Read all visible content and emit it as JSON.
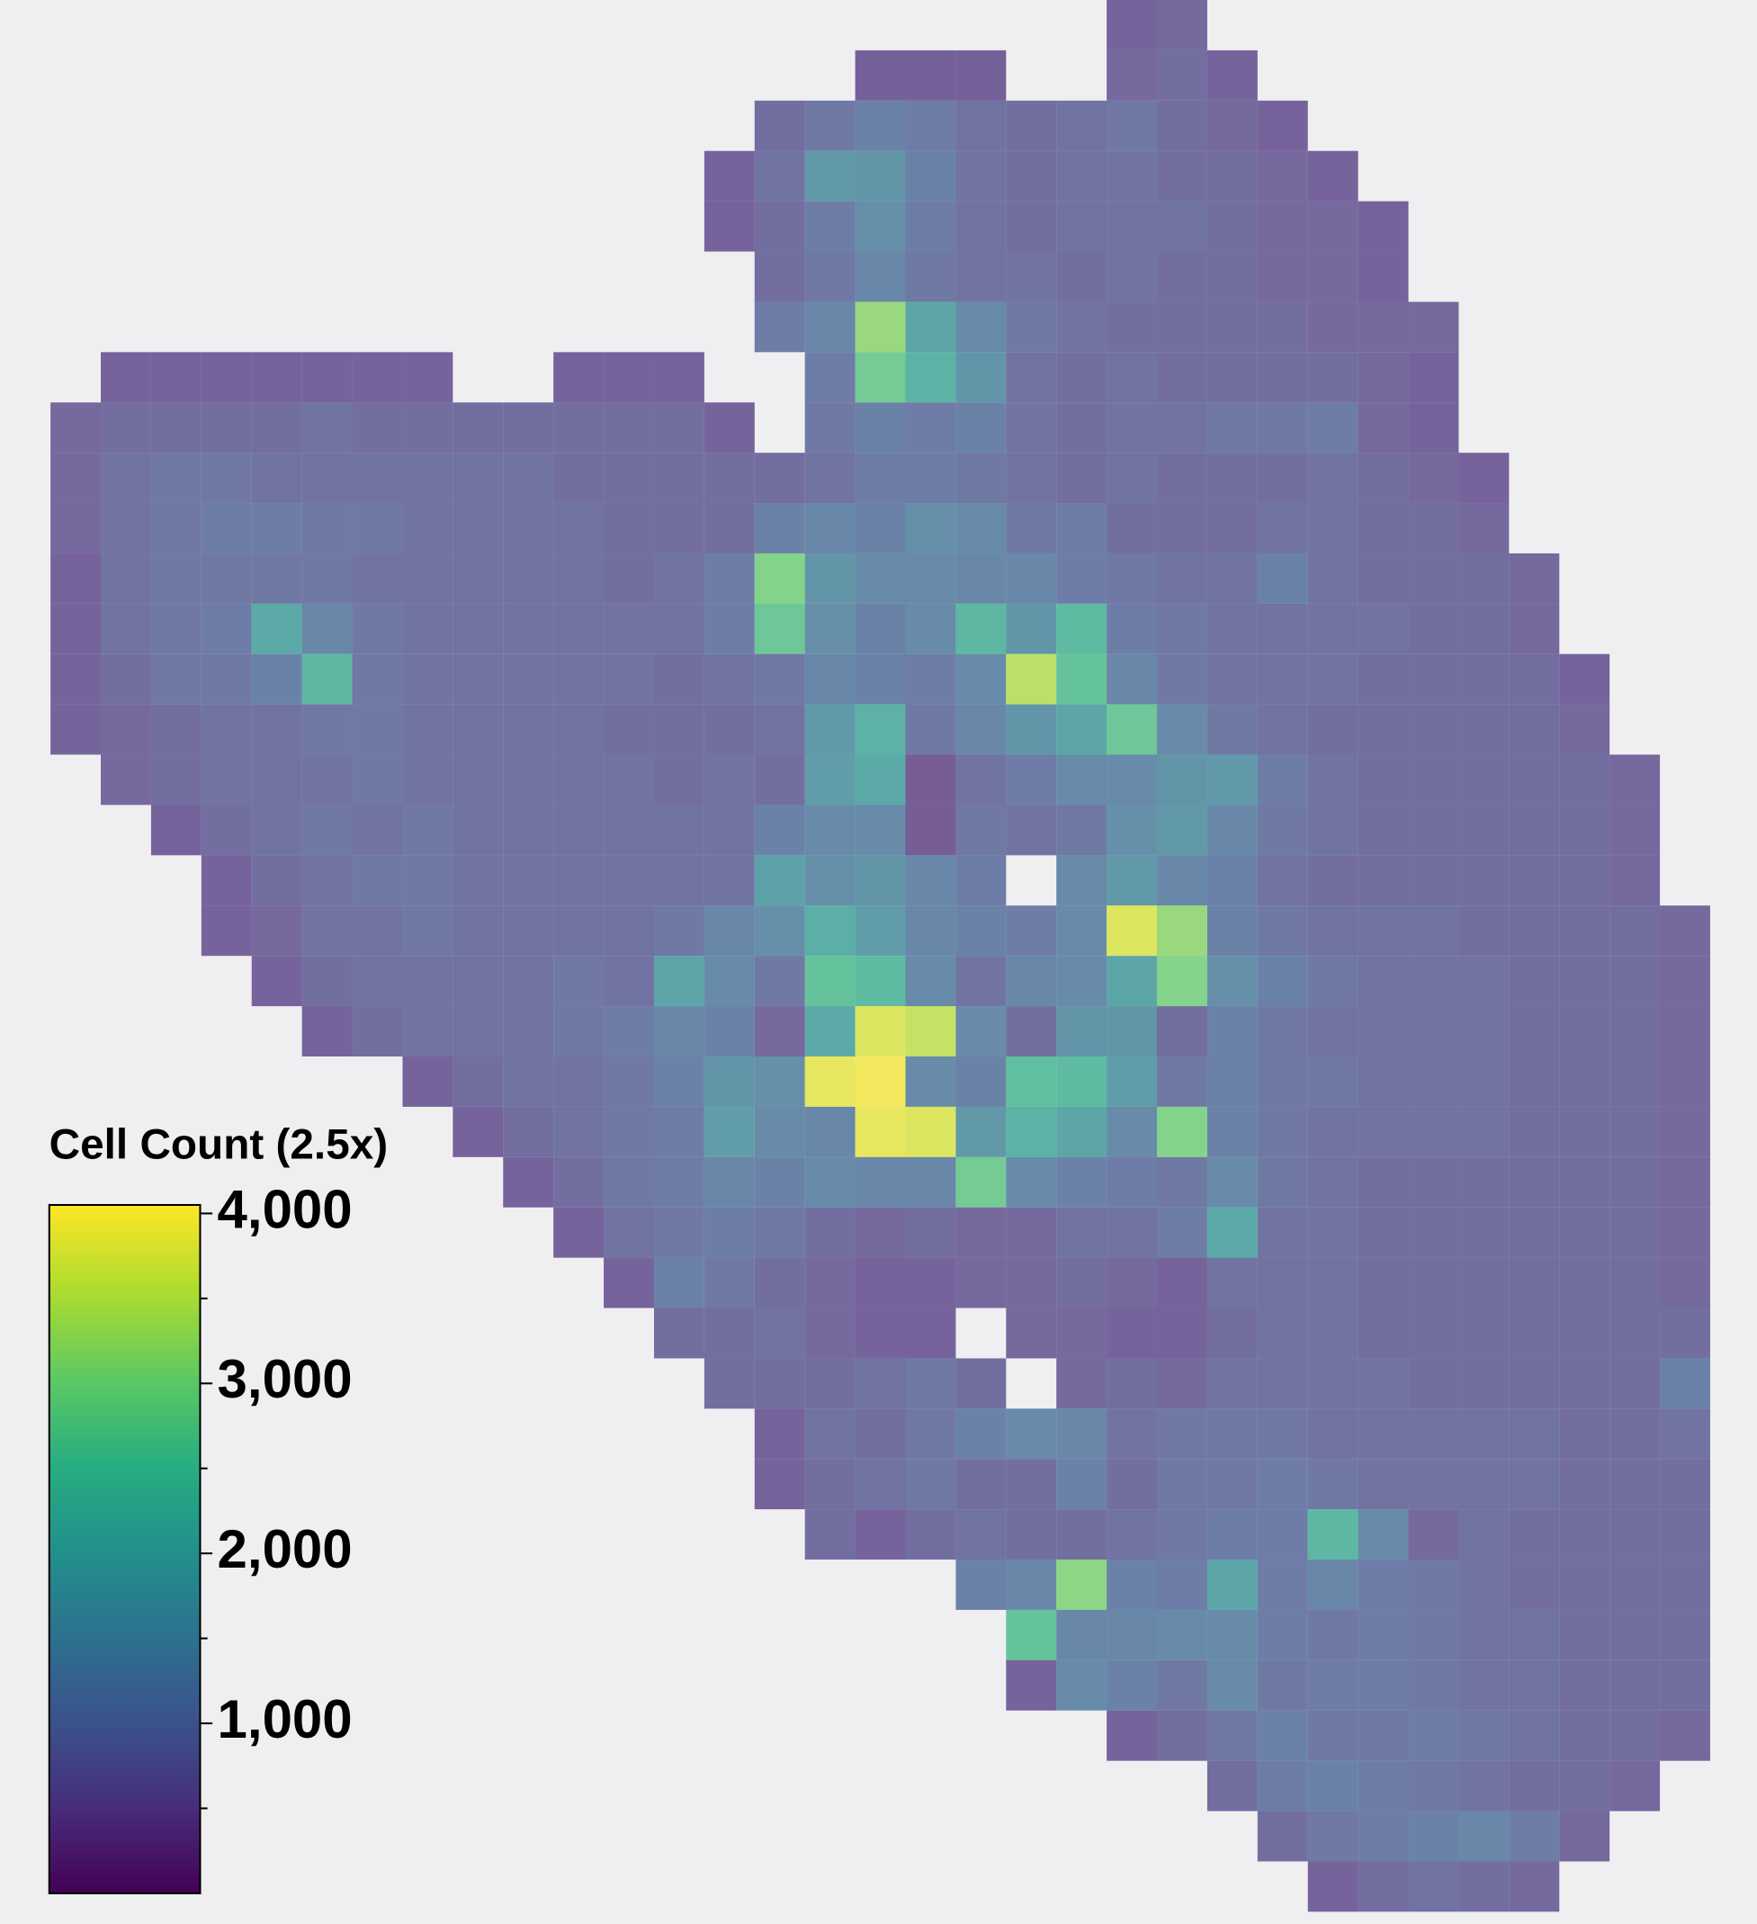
{
  "chart_data": {
    "type": "heatmap",
    "colormap": "viridis",
    "colorbar_title": "Cell Count (2.5x)",
    "clim": [
      0,
      4050
    ],
    "cticks": [
      {
        "value": 1000,
        "label": "1,000"
      },
      {
        "value": 2000,
        "label": "2,000"
      },
      {
        "value": 3000,
        "label": "3,000"
      },
      {
        "value": 4000,
        "label": "4,000"
      }
    ],
    "minor_cticks": [
      500,
      1500,
      2500,
      3500
    ],
    "values": [
      [
        null,
        null,
        null,
        null,
        null,
        null,
        null,
        null,
        null,
        null,
        null,
        null,
        null,
        null,
        null,
        null,
        null,
        null,
        null,
        null,
        null,
        null,
        500,
        600,
        null,
        null,
        null,
        null,
        null,
        null,
        null,
        null,
        null,
        null,
        null
      ],
      [
        null,
        null,
        null,
        null,
        null,
        null,
        null,
        null,
        null,
        null,
        null,
        null,
        null,
        null,
        null,
        null,
        null,
        450,
        450,
        450,
        null,
        null,
        600,
        700,
        500,
        null,
        null,
        null,
        null,
        null,
        null,
        null,
        null,
        null,
        null
      ],
      [
        null,
        null,
        null,
        null,
        null,
        null,
        null,
        null,
        null,
        null,
        null,
        null,
        null,
        null,
        null,
        700,
        900,
        1100,
        1000,
        800,
        700,
        800,
        900,
        700,
        600,
        500,
        null,
        null,
        null,
        null,
        null,
        null,
        null,
        null,
        null
      ],
      [
        null,
        null,
        null,
        null,
        null,
        null,
        null,
        null,
        null,
        null,
        null,
        null,
        null,
        null,
        500,
        800,
        1600,
        1500,
        1100,
        800,
        700,
        800,
        800,
        700,
        700,
        600,
        500,
        null,
        null,
        null,
        null,
        null,
        null,
        null,
        null
      ],
      [
        null,
        null,
        null,
        null,
        null,
        null,
        null,
        null,
        null,
        null,
        null,
        null,
        null,
        null,
        500,
        700,
        1000,
        1400,
        1000,
        800,
        700,
        800,
        800,
        800,
        700,
        600,
        600,
        500,
        null,
        null,
        null,
        null,
        null,
        null,
        null
      ],
      [
        null,
        null,
        null,
        null,
        null,
        null,
        null,
        null,
        null,
        null,
        null,
        null,
        null,
        null,
        null,
        700,
        900,
        1200,
        900,
        800,
        800,
        700,
        800,
        700,
        700,
        600,
        600,
        500,
        null,
        null,
        null,
        null,
        null,
        null,
        null
      ],
      [
        null,
        null,
        null,
        null,
        null,
        null,
        null,
        null,
        null,
        null,
        null,
        null,
        null,
        null,
        null,
        1000,
        1200,
        3200,
        1900,
        1300,
        900,
        800,
        700,
        700,
        700,
        700,
        600,
        600,
        600,
        null,
        null,
        null,
        null,
        null,
        null
      ],
      [
        null,
        null,
        500,
        500,
        500,
        500,
        500,
        500,
        500,
        null,
        null,
        500,
        500,
        500,
        null,
        null,
        1000,
        2800,
        2200,
        1500,
        800,
        700,
        800,
        700,
        700,
        700,
        700,
        600,
        500,
        null,
        null,
        null,
        null,
        null,
        null
      ],
      [
        null,
        600,
        700,
        700,
        700,
        700,
        800,
        700,
        700,
        700,
        700,
        700,
        700,
        700,
        500,
        null,
        900,
        1100,
        1000,
        1100,
        800,
        700,
        800,
        800,
        900,
        900,
        1000,
        600,
        500,
        null,
        null,
        null,
        null,
        null,
        null
      ],
      [
        null,
        600,
        800,
        900,
        900,
        800,
        800,
        800,
        800,
        800,
        800,
        700,
        700,
        700,
        700,
        700,
        800,
        1000,
        1000,
        900,
        800,
        700,
        800,
        700,
        700,
        700,
        800,
        700,
        600,
        500,
        null,
        null,
        null,
        null,
        null
      ],
      [
        null,
        600,
        800,
        900,
        1000,
        1000,
        900,
        900,
        800,
        800,
        800,
        800,
        700,
        700,
        700,
        1100,
        1200,
        1100,
        1400,
        1300,
        900,
        1000,
        700,
        700,
        700,
        800,
        800,
        700,
        700,
        600,
        null,
        null,
        null,
        null,
        null
      ],
      [
        null,
        500,
        800,
        900,
        900,
        900,
        900,
        800,
        800,
        800,
        800,
        800,
        700,
        800,
        1000,
        3000,
        1500,
        1300,
        1300,
        1200,
        1200,
        1000,
        900,
        800,
        800,
        1100,
        800,
        700,
        700,
        700,
        600,
        null,
        null,
        null,
        null
      ],
      [
        null,
        500,
        800,
        900,
        1000,
        2000,
        1200,
        900,
        800,
        800,
        800,
        800,
        800,
        800,
        1000,
        2700,
        1400,
        1100,
        1300,
        2300,
        1500,
        2400,
        1000,
        900,
        800,
        800,
        800,
        800,
        700,
        700,
        600,
        null,
        null,
        null,
        null
      ],
      [
        null,
        500,
        700,
        900,
        900,
        1100,
        2300,
        900,
        800,
        800,
        800,
        800,
        800,
        700,
        800,
        900,
        1200,
        1100,
        1000,
        1300,
        3500,
        2600,
        1200,
        900,
        800,
        800,
        800,
        700,
        700,
        700,
        700,
        500,
        null,
        null,
        null
      ],
      [
        null,
        500,
        600,
        700,
        800,
        800,
        900,
        900,
        800,
        800,
        800,
        800,
        700,
        700,
        700,
        800,
        1600,
        2200,
        900,
        1200,
        1500,
        1900,
        2700,
        1300,
        900,
        800,
        700,
        700,
        700,
        700,
        700,
        600,
        null,
        null,
        null
      ],
      [
        null,
        null,
        600,
        700,
        800,
        800,
        800,
        900,
        800,
        800,
        800,
        800,
        800,
        700,
        800,
        700,
        1700,
        2000,
        400,
        800,
        1000,
        1300,
        1300,
        1500,
        1600,
        1000,
        800,
        700,
        700,
        700,
        700,
        700,
        600,
        null,
        null
      ],
      [
        null,
        null,
        null,
        500,
        700,
        800,
        900,
        800,
        900,
        800,
        800,
        800,
        800,
        800,
        800,
        1100,
        1300,
        1300,
        400,
        900,
        800,
        900,
        1400,
        1600,
        1200,
        900,
        800,
        700,
        700,
        700,
        700,
        700,
        600,
        null,
        null
      ],
      [
        null,
        null,
        null,
        null,
        500,
        700,
        800,
        900,
        900,
        800,
        800,
        800,
        800,
        800,
        800,
        1800,
        1400,
        1500,
        1200,
        1000,
        null,
        1300,
        1600,
        1200,
        1100,
        800,
        700,
        700,
        700,
        700,
        700,
        700,
        600,
        null,
        null
      ],
      [
        null,
        null,
        null,
        null,
        500,
        600,
        800,
        800,
        900,
        800,
        800,
        800,
        800,
        900,
        1200,
        1400,
        2100,
        1700,
        1200,
        1100,
        1000,
        1300,
        3800,
        3200,
        1100,
        900,
        800,
        800,
        800,
        700,
        700,
        700,
        700,
        600,
        null
      ],
      [
        null,
        null,
        null,
        null,
        null,
        500,
        700,
        800,
        800,
        800,
        800,
        900,
        800,
        1900,
        1300,
        900,
        2600,
        2400,
        1300,
        800,
        1200,
        1300,
        1900,
        3000,
        1400,
        1100,
        900,
        800,
        800,
        800,
        700,
        700,
        700,
        600,
        null
      ],
      [
        null,
        null,
        null,
        null,
        null,
        null,
        500,
        700,
        800,
        800,
        800,
        900,
        1000,
        1200,
        1100,
        600,
        2000,
        3800,
        3600,
        1300,
        700,
        1500,
        1500,
        700,
        1100,
        900,
        800,
        800,
        800,
        800,
        700,
        700,
        700,
        600,
        null
      ],
      [
        null,
        null,
        null,
        null,
        null,
        null,
        null,
        null,
        500,
        700,
        800,
        800,
        900,
        1100,
        1500,
        1400,
        3900,
        4000,
        1300,
        1100,
        2500,
        2400,
        1700,
        900,
        1100,
        900,
        900,
        800,
        800,
        800,
        700,
        700,
        700,
        600,
        null
      ],
      [
        null,
        null,
        null,
        null,
        null,
        null,
        null,
        null,
        null,
        500,
        700,
        800,
        900,
        1000,
        1700,
        1300,
        1200,
        3900,
        3800,
        1600,
        2200,
        1900,
        1300,
        3000,
        1100,
        900,
        800,
        800,
        800,
        800,
        700,
        700,
        700,
        600,
        null
      ],
      [
        null,
        null,
        null,
        null,
        null,
        null,
        null,
        null,
        null,
        null,
        500,
        700,
        900,
        1000,
        1200,
        1100,
        1300,
        1200,
        1200,
        2800,
        1300,
        1100,
        1000,
        900,
        1300,
        900,
        800,
        700,
        700,
        700,
        700,
        700,
        700,
        600,
        null
      ],
      [
        null,
        null,
        null,
        null,
        null,
        null,
        null,
        null,
        null,
        null,
        null,
        500,
        800,
        900,
        1000,
        900,
        700,
        600,
        700,
        600,
        600,
        800,
        800,
        1000,
        2000,
        800,
        800,
        700,
        700,
        700,
        700,
        700,
        700,
        600,
        null
      ],
      [
        null,
        null,
        null,
        null,
        null,
        null,
        null,
        null,
        null,
        null,
        null,
        null,
        500,
        1100,
        900,
        700,
        600,
        500,
        500,
        600,
        600,
        700,
        600,
        500,
        800,
        800,
        800,
        700,
        700,
        700,
        700,
        700,
        700,
        600,
        null
      ],
      [
        null,
        null,
        null,
        null,
        null,
        null,
        null,
        null,
        null,
        null,
        null,
        null,
        null,
        700,
        700,
        800,
        600,
        500,
        500,
        null,
        600,
        600,
        500,
        500,
        700,
        800,
        800,
        700,
        700,
        700,
        700,
        700,
        700,
        700,
        null
      ],
      [
        null,
        null,
        null,
        null,
        null,
        null,
        null,
        null,
        null,
        null,
        null,
        null,
        null,
        null,
        700,
        700,
        700,
        800,
        900,
        700,
        null,
        600,
        700,
        600,
        800,
        800,
        800,
        800,
        700,
        700,
        700,
        700,
        700,
        1100,
        null
      ],
      [
        null,
        null,
        null,
        null,
        null,
        null,
        null,
        null,
        null,
        null,
        null,
        null,
        null,
        null,
        null,
        500,
        800,
        700,
        900,
        1100,
        1300,
        1200,
        800,
        900,
        900,
        900,
        800,
        800,
        800,
        800,
        800,
        700,
        700,
        800,
        null
      ],
      [
        null,
        null,
        null,
        null,
        null,
        null,
        null,
        null,
        null,
        null,
        null,
        null,
        null,
        null,
        null,
        500,
        700,
        800,
        900,
        700,
        700,
        1100,
        700,
        900,
        900,
        1000,
        900,
        800,
        800,
        800,
        800,
        700,
        700,
        700,
        null
      ],
      [
        null,
        null,
        null,
        null,
        null,
        null,
        null,
        null,
        null,
        null,
        null,
        null,
        null,
        null,
        null,
        null,
        700,
        500,
        700,
        800,
        700,
        700,
        800,
        900,
        1000,
        1000,
        2300,
        1300,
        600,
        800,
        700,
        700,
        700,
        700,
        null
      ],
      [
        null,
        null,
        null,
        null,
        null,
        null,
        null,
        null,
        null,
        null,
        null,
        null,
        null,
        null,
        null,
        null,
        null,
        null,
        null,
        1100,
        1200,
        3100,
        1100,
        1000,
        1900,
        1000,
        1200,
        1000,
        900,
        800,
        700,
        700,
        700,
        700,
        null
      ],
      [
        null,
        null,
        null,
        null,
        null,
        null,
        null,
        null,
        null,
        null,
        null,
        null,
        null,
        null,
        null,
        null,
        null,
        null,
        null,
        null,
        2600,
        1200,
        1200,
        1300,
        1300,
        1000,
        900,
        1000,
        900,
        800,
        800,
        700,
        700,
        700,
        null
      ],
      [
        null,
        null,
        null,
        null,
        null,
        null,
        null,
        null,
        null,
        null,
        null,
        null,
        null,
        null,
        null,
        null,
        null,
        null,
        null,
        null,
        500,
        1300,
        1100,
        900,
        1300,
        900,
        1000,
        1000,
        900,
        800,
        800,
        700,
        700,
        700,
        null
      ],
      [
        null,
        null,
        null,
        null,
        null,
        null,
        null,
        null,
        null,
        null,
        null,
        null,
        null,
        null,
        null,
        null,
        null,
        null,
        null,
        null,
        null,
        null,
        500,
        700,
        900,
        1100,
        900,
        900,
        1000,
        900,
        800,
        700,
        700,
        600,
        null
      ],
      [
        null,
        null,
        null,
        null,
        null,
        null,
        null,
        null,
        null,
        null,
        null,
        null,
        null,
        null,
        null,
        null,
        null,
        null,
        null,
        null,
        null,
        null,
        null,
        null,
        700,
        1000,
        1100,
        1000,
        900,
        800,
        700,
        700,
        600,
        null,
        null
      ],
      [
        null,
        null,
        null,
        null,
        null,
        null,
        null,
        null,
        null,
        null,
        null,
        null,
        null,
        null,
        null,
        null,
        null,
        null,
        null,
        null,
        null,
        null,
        null,
        null,
        null,
        700,
        900,
        1000,
        1100,
        1200,
        1000,
        600,
        null,
        null,
        null
      ],
      [
        null,
        null,
        null,
        null,
        null,
        null,
        null,
        null,
        null,
        null,
        null,
        null,
        null,
        null,
        null,
        null,
        null,
        null,
        null,
        null,
        null,
        null,
        null,
        null,
        null,
        null,
        500,
        700,
        800,
        700,
        600,
        null,
        null,
        null,
        null
      ]
    ]
  }
}
